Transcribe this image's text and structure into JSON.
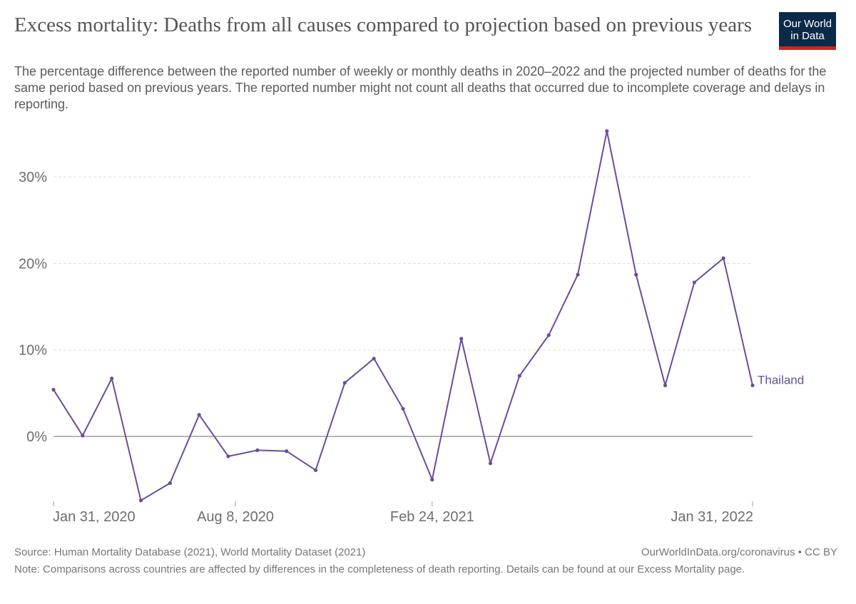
{
  "header": {
    "title": "Excess mortality: Deaths from all causes compared to projection based on previous years",
    "subtitle": "The percentage difference between the reported number of weekly or monthly deaths in 2020–2022 and the projected number of deaths for the same period based on previous years. The reported number might not count all deaths that occurred due to incomplete coverage and delays in reporting.",
    "logo_line1": "Our World",
    "logo_line2": "in Data"
  },
  "footer": {
    "source": "Source: Human Mortality Database (2021), World Mortality Dataset (2021)",
    "url": "OurWorldInData.org/coronavirus • CC BY",
    "note": "Note: Comparisons across countries are affected by differences in the completeness of death reporting. Details can be found at our Excess Mortality page."
  },
  "chart_data": {
    "type": "line",
    "title": "Excess mortality: Deaths from all causes compared to projection based on previous years",
    "xlabel": "",
    "ylabel": "",
    "x_ticks": [
      "Jan 31, 2020",
      "Aug 8, 2020",
      "Feb 24, 2021",
      "Jan 31, 2022"
    ],
    "y_ticks": [
      "0%",
      "10%",
      "20%",
      "30%"
    ],
    "ylim": [
      -7.5,
      35.5
    ],
    "grid": true,
    "line_color": "#6b4c9a",
    "series": [
      {
        "name": "Thailand",
        "x": [
          "Jan 31, 2020",
          "Feb 29, 2020",
          "Mar 31, 2020",
          "Apr 30, 2020",
          "May 31, 2020",
          "Jun 30, 2020",
          "Jul 31, 2020",
          "Aug 31, 2020",
          "Sep 30, 2020",
          "Oct 31, 2020",
          "Nov 30, 2020",
          "Dec 31, 2020",
          "Jan 31, 2021",
          "Feb 28, 2021",
          "Mar 31, 2021",
          "Apr 30, 2021",
          "May 31, 2021",
          "Jun 30, 2021",
          "Jul 31, 2021",
          "Aug 31, 2021",
          "Sep 30, 2021",
          "Oct 31, 2021",
          "Nov 30, 2021",
          "Dec 31, 2021",
          "Jan 31, 2022"
        ],
        "values": [
          5.4,
          0.1,
          6.7,
          -7.4,
          -5.4,
          2.5,
          -2.3,
          -1.6,
          -1.7,
          -3.9,
          6.2,
          9.0,
          3.2,
          -5.0,
          11.3,
          -3.1,
          7.0,
          11.7,
          18.7,
          35.3,
          18.7,
          5.9,
          17.8,
          20.6,
          5.9
        ]
      }
    ]
  }
}
